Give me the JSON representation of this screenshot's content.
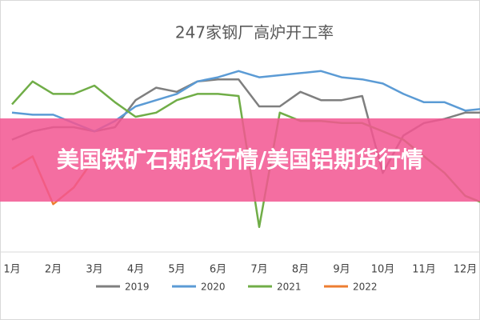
{
  "chart_data": {
    "type": "line",
    "title": "247家钢厂高炉开工率",
    "categories": [
      "1月",
      null,
      "2月",
      null,
      "3月",
      null,
      "4月",
      null,
      "5月",
      null,
      "6月",
      null,
      "7月",
      null,
      "8月",
      null,
      "9月",
      null,
      "10月",
      null,
      "11月",
      null,
      "12月",
      null
    ],
    "ylim": [
      0,
      100
    ],
    "series": [
      {
        "name": "2019",
        "color": "#7f7f7f",
        "values": [
          54,
          58,
          60,
          60,
          58,
          60,
          73,
          79,
          77,
          82,
          83,
          83,
          70,
          70,
          77,
          73,
          73,
          75,
          38,
          56,
          62,
          64,
          67,
          67
        ]
      },
      {
        "name": "2020",
        "color": "#5b9bd5",
        "values": [
          67,
          66,
          66,
          62,
          58,
          63,
          70,
          73,
          76,
          82,
          84,
          87,
          84,
          85,
          86,
          87,
          84,
          83,
          81,
          76,
          72,
          72,
          68,
          69
        ]
      },
      {
        "name": "2021",
        "color": "#70ad47",
        "values": [
          71,
          82,
          76,
          76,
          80,
          72,
          65,
          67,
          73,
          76,
          76,
          75,
          12,
          67,
          63,
          63,
          62,
          62,
          58,
          54,
          46,
          38,
          27,
          23
        ]
      },
      {
        "name": "2022",
        "color": "#ed7d31",
        "values": [
          40,
          46,
          23,
          31,
          45,
          null,
          null,
          null,
          null,
          null,
          null,
          null,
          null,
          null,
          null,
          null,
          null,
          null,
          null,
          null,
          null,
          null,
          null,
          null
        ]
      }
    ]
  },
  "banner": {
    "text": "美国铁矿石期货行情/美国铝期货行情"
  }
}
